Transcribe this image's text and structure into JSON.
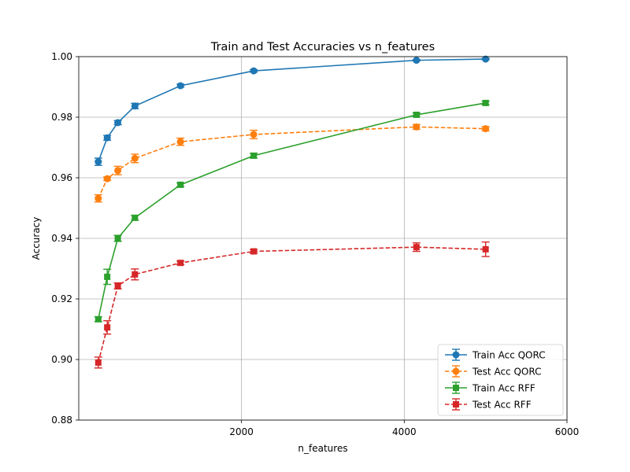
{
  "chart_data": {
    "type": "line",
    "title": "Train and Test Accuracies vs n_features",
    "xlabel": "n_features",
    "ylabel": "Accuracy",
    "xlim": [
      0,
      6000
    ],
    "ylim": [
      0.88,
      1.0
    ],
    "x_ticks": [
      2000,
      4000,
      6000
    ],
    "x_tick_labels": [
      "2000",
      "4000",
      "6000"
    ],
    "y_ticks": [
      0.88,
      0.9,
      0.92,
      0.94,
      0.96,
      0.98,
      1.0
    ],
    "y_tick_labels": [
      "0.88",
      "0.90",
      "0.92",
      "0.94",
      "0.96",
      "0.98",
      "1.00"
    ],
    "grid": true,
    "legend_position": "lower right",
    "x": [
      250,
      350,
      480,
      680,
      1250,
      2150,
      4150,
      5000
    ],
    "series": [
      {
        "name": "Train Acc QORC",
        "color": "#1f77b4",
        "marker": "circle",
        "linestyle": "solid",
        "x": [
          240,
          350,
          480,
          690,
          1250,
          2150,
          4150,
          5000
        ],
        "values": [
          0.9653,
          0.9732,
          0.9782,
          0.9837,
          0.9904,
          0.9953,
          0.9988,
          0.9992
        ],
        "errors": [
          0.0012,
          0.0008,
          0.0007,
          0.0009,
          0.0005,
          0.0004,
          0.0002,
          0.0002
        ]
      },
      {
        "name": "Test Acc QORC",
        "color": "#ff7f0e",
        "marker": "circle",
        "linestyle": "dashed",
        "x": [
          240,
          350,
          480,
          690,
          1250,
          2150,
          4150,
          5000
        ],
        "values": [
          0.9532,
          0.9597,
          0.9624,
          0.9664,
          0.9719,
          0.9743,
          0.9768,
          0.9762
        ],
        "errors": [
          0.0012,
          0.0006,
          0.0014,
          0.0014,
          0.0012,
          0.0014,
          0.0008,
          0.0007
        ]
      },
      {
        "name": "Train Acc RFF",
        "color": "#2ca02c",
        "marker": "square",
        "linestyle": "solid",
        "x": [
          240,
          350,
          480,
          690,
          1250,
          2150,
          4150,
          5000
        ],
        "values": [
          0.9133,
          0.9273,
          0.94,
          0.9468,
          0.9577,
          0.9673,
          0.9808,
          0.9847
        ],
        "errors": [
          0.0008,
          0.0025,
          0.001,
          0.0008,
          0.0006,
          0.0008,
          0.0006,
          0.0006
        ]
      },
      {
        "name": "Test Acc RFF",
        "color": "#d62728",
        "marker": "square",
        "linestyle": "dashed",
        "x": [
          240,
          350,
          480,
          690,
          1250,
          2150,
          4150,
          5000
        ],
        "values": [
          0.899,
          0.9106,
          0.9243,
          0.9281,
          0.9319,
          0.9357,
          0.9371,
          0.9364
        ],
        "errors": [
          0.0018,
          0.0022,
          0.001,
          0.0018,
          0.0006,
          0.0006,
          0.0014,
          0.0024
        ]
      }
    ]
  }
}
